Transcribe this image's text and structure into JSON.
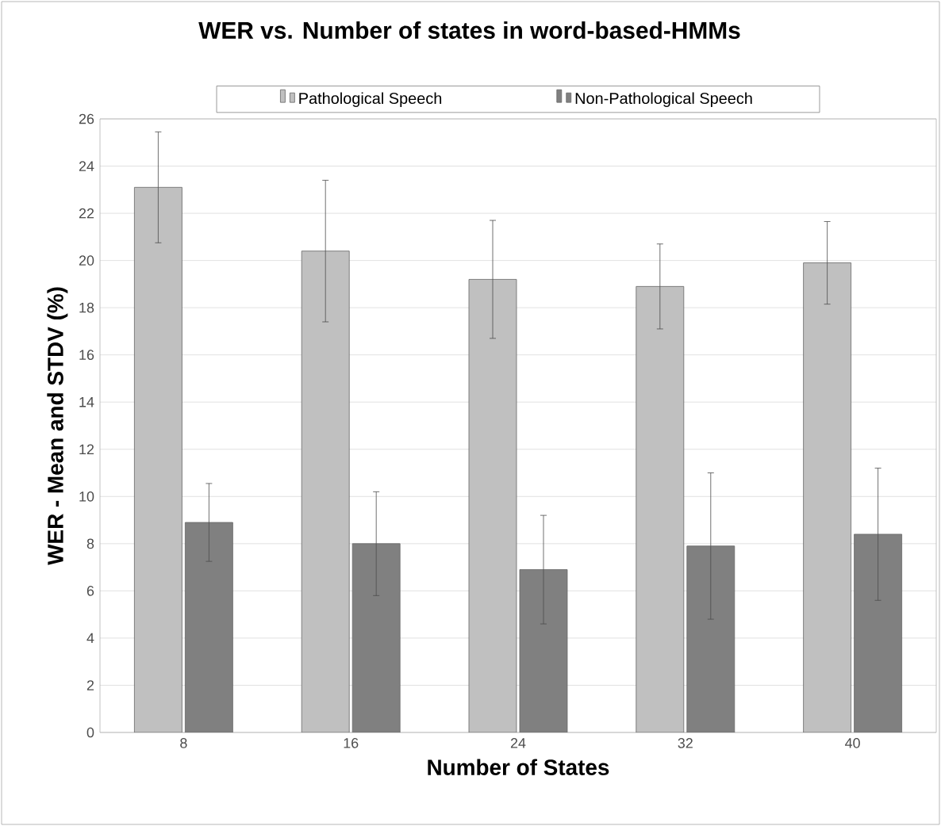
{
  "chart_data": {
    "type": "bar",
    "title": "WER vs. Number of states in word-based-HMMs",
    "xlabel": "Number of States",
    "ylabel": "WER - Mean and STDV (%)",
    "categories": [
      "8",
      "16",
      "24",
      "32",
      "40"
    ],
    "series": [
      {
        "name": "Pathological Speech",
        "color": "#c0c0c0",
        "values": [
          23.1,
          20.4,
          19.2,
          18.9,
          19.9
        ],
        "errors": [
          2.35,
          3.0,
          2.5,
          1.8,
          1.75
        ]
      },
      {
        "name": "Non-Pathological Speech",
        "color": "#808080",
        "values": [
          8.9,
          8.0,
          6.9,
          7.9,
          8.4
        ],
        "errors": [
          1.65,
          2.2,
          2.3,
          3.1,
          2.8
        ]
      }
    ],
    "ylim": [
      0,
      26
    ],
    "yticks": [
      0,
      2,
      4,
      6,
      8,
      10,
      12,
      14,
      16,
      18,
      20,
      22,
      24,
      26
    ],
    "grid": "y",
    "legend": "top"
  }
}
